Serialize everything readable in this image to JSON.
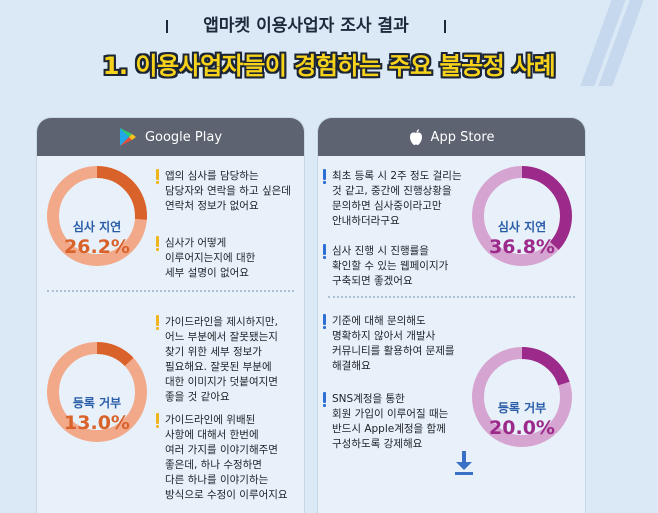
{
  "header": {
    "tag": "앱마켓 이용사업자 조사 결과",
    "title": "1. 이용사업자들이 경험하는 주요 불공정 사례"
  },
  "google": {
    "name": "Google Play",
    "review": {
      "category": "심사 지연",
      "percent": "26.2%",
      "quotes": [
        "앱의 심사를 담당하는\n담당자와 연락을 하고 싶은데\n연락처 정보가 없어요",
        "심사가 어떻게\n이루어지는지에 대한\n세부 설명이 없어요"
      ]
    },
    "rejection": {
      "category": "등록 거부",
      "percent": "13.0%",
      "quotes": [
        "가이드라인을 제시하지만,\n어느 부분에서 잘못됐는지\n찾기 위한 세부 정보가\n필요해요. 잘못된 부분에\n대한 이미지가 덧붙여지면\n좋을 것 같아요",
        "가이드라인에 위배된\n사항에 대해서 한번에\n여러 가지를 이야기해주면\n좋은데, 하나 수정하면\n다른 하나를 이야기하는\n방식으로 수정이 이루어지요"
      ]
    }
  },
  "apple": {
    "name": "App Store",
    "review": {
      "category": "심사 지연",
      "percent": "36.8%",
      "quotes": [
        "최초 등록 시 2주 정도 걸리는\n것 같고, 중간에 진행상황을\n문의하면 심사중이라고만\n안내하더라구요",
        "심사 진행 시 진행률을\n확인할 수 있는 웹페이지가\n구축되면 좋겠어요"
      ]
    },
    "rejection": {
      "category": "등록 거부",
      "percent": "20.0%",
      "quotes": [
        "기준에 대해 문의해도\n명확하지 않아서 개발사\n커뮤니티를 활용하여 문제를\n해결해요",
        "SNS계정을 통한\n회원 가입이 이루어질 때는\n반드시 Apple계정을 함께\n구성하도록 강제해요"
      ]
    }
  },
  "chart_data": [
    {
      "type": "pie",
      "store": "Google Play",
      "categories": [
        "심사 지연"
      ],
      "values": [
        26.2
      ],
      "color": "#d9622b",
      "track": "#f2a98a"
    },
    {
      "type": "pie",
      "store": "Google Play",
      "categories": [
        "등록 거부"
      ],
      "values": [
        13.0
      ],
      "color": "#d9622b",
      "track": "#f2a98a"
    },
    {
      "type": "pie",
      "store": "App Store",
      "categories": [
        "심사 지연"
      ],
      "values": [
        36.8
      ],
      "color": "#9b2a8a",
      "track": "#d6a4d0"
    },
    {
      "type": "pie",
      "store": "App Store",
      "categories": [
        "등록 거부"
      ],
      "values": [
        20.0
      ],
      "color": "#9b2a8a",
      "track": "#d6a4d0"
    }
  ],
  "colors": {
    "google_accent": "#d9622b",
    "apple_accent": "#9b2a8a",
    "title_yellow": "#f7d21a"
  },
  "icons": {
    "google": "google-play-icon",
    "apple": "apple-icon",
    "download": "download-icon"
  }
}
